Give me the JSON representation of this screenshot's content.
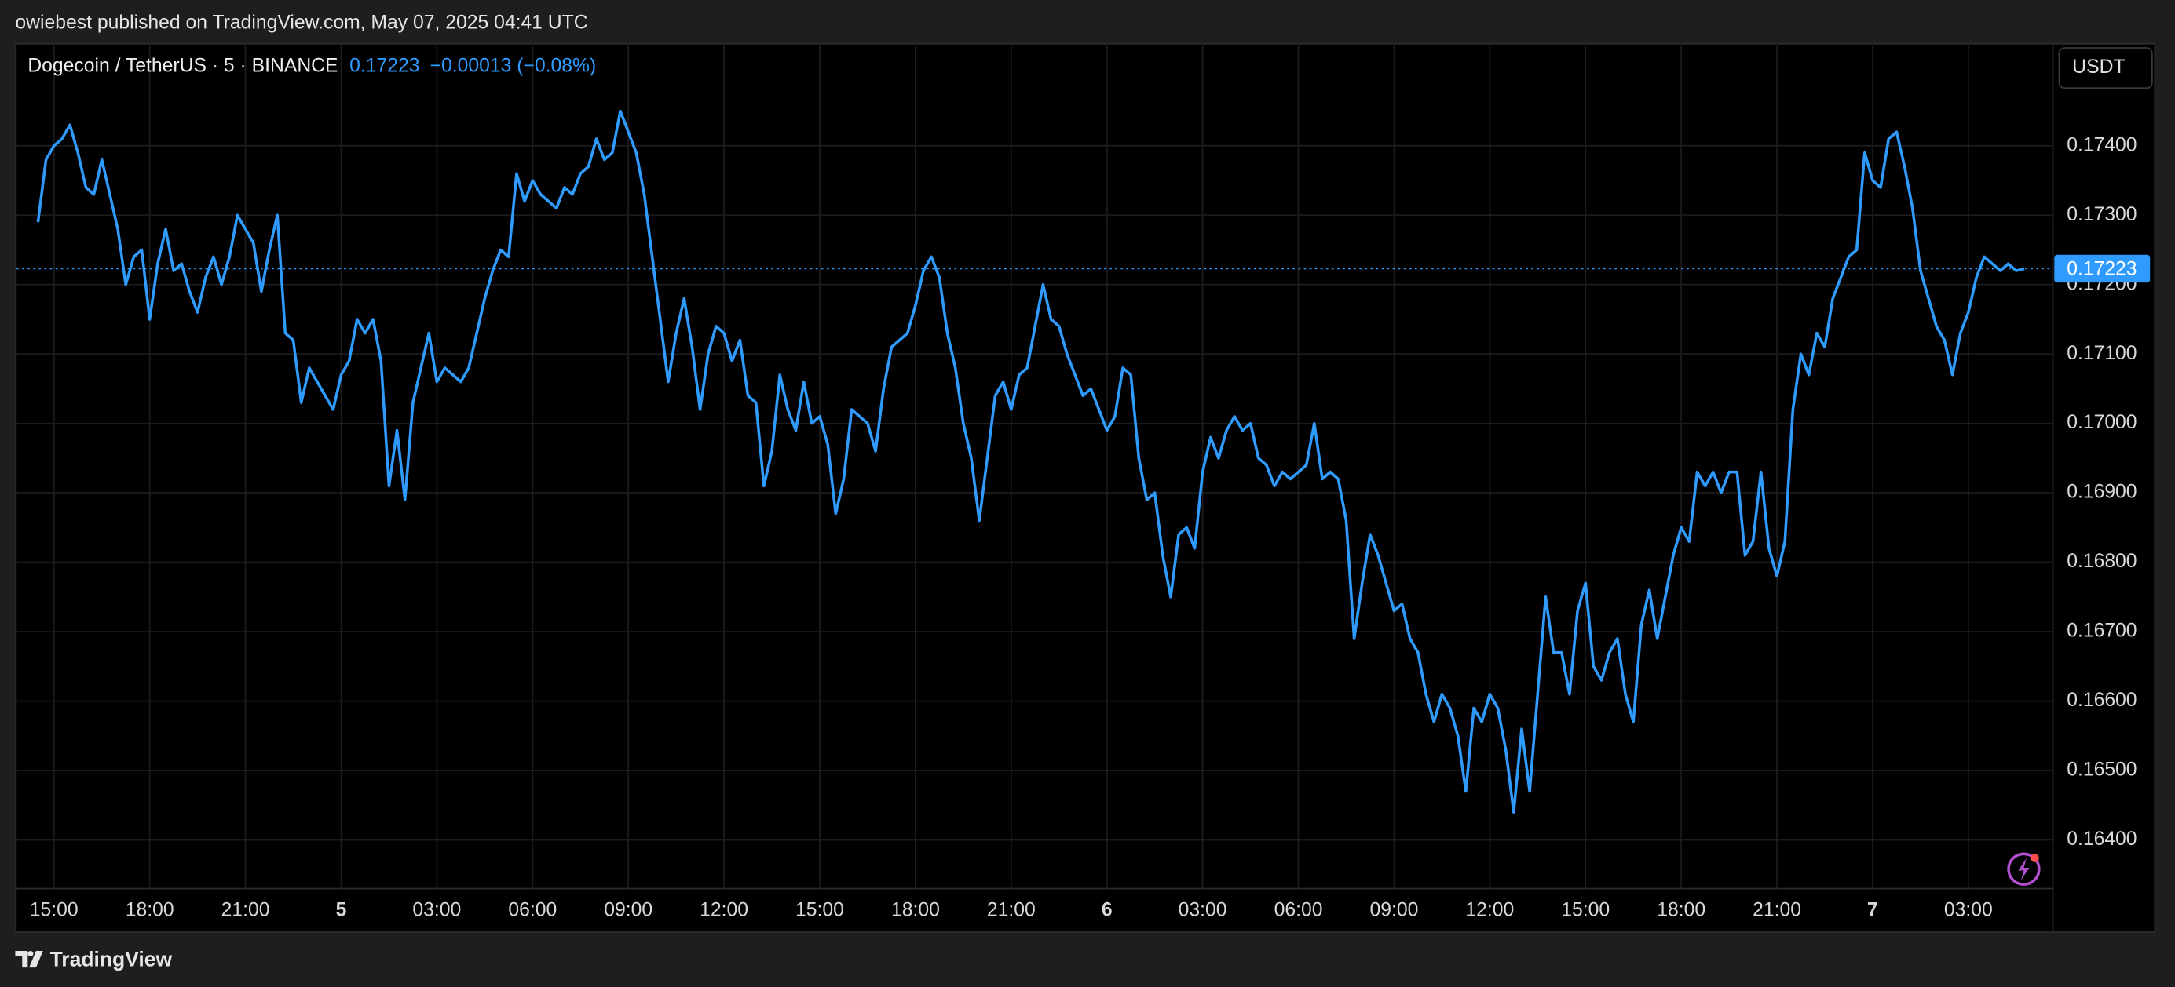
{
  "page": {
    "published": "owiebest published on TradingView.com, May 07, 2025 04:41 UTC",
    "brand": "TradingView"
  },
  "chart_data": {
    "type": "line",
    "title": "Dogecoin / TetherUS · 5 · BINANCE",
    "last_price": {
      "value": 0.17223,
      "label": "0.17223"
    },
    "change": "−0.00013 (−0.08%)",
    "y_unit": "USDT",
    "color": "#2f9bff",
    "grid": true,
    "xlim": [
      13.83,
      77.65
    ],
    "ylim": [
      0.1633,
      0.17548
    ],
    "xticks": [
      {
        "value": 15,
        "label": "15:00"
      },
      {
        "value": 18,
        "label": "18:00"
      },
      {
        "value": 21,
        "label": "21:00"
      },
      {
        "value": 24,
        "label": "5"
      },
      {
        "value": 27,
        "label": "03:00"
      },
      {
        "value": 30,
        "label": "06:00"
      },
      {
        "value": 33,
        "label": "09:00"
      },
      {
        "value": 36,
        "label": "12:00"
      },
      {
        "value": 39,
        "label": "15:00"
      },
      {
        "value": 42,
        "label": "18:00"
      },
      {
        "value": 45,
        "label": "21:00"
      },
      {
        "value": 48,
        "label": "6"
      },
      {
        "value": 51,
        "label": "03:00"
      },
      {
        "value": 54,
        "label": "06:00"
      },
      {
        "value": 57,
        "label": "09:00"
      },
      {
        "value": 60,
        "label": "12:00"
      },
      {
        "value": 63,
        "label": "15:00"
      },
      {
        "value": 66,
        "label": "18:00"
      },
      {
        "value": 69,
        "label": "21:00"
      },
      {
        "value": 72,
        "label": "7"
      },
      {
        "value": 75,
        "label": "03:00"
      }
    ],
    "yticks": [
      {
        "value": 0.164,
        "label": "0.16400"
      },
      {
        "value": 0.165,
        "label": "0.16500"
      },
      {
        "value": 0.166,
        "label": "0.16600"
      },
      {
        "value": 0.167,
        "label": "0.16700"
      },
      {
        "value": 0.168,
        "label": "0.16800"
      },
      {
        "value": 0.169,
        "label": "0.16900"
      },
      {
        "value": 0.17,
        "label": "0.17000"
      },
      {
        "value": 0.171,
        "label": "0.17100"
      },
      {
        "value": 0.172,
        "label": "0.17200"
      },
      {
        "value": 0.173,
        "label": "0.17300"
      },
      {
        "value": 0.174,
        "label": "0.17400"
      }
    ],
    "x": [
      14.5,
      14.75,
      15,
      15.25,
      15.5,
      15.75,
      16,
      16.25,
      16.5,
      16.75,
      17,
      17.25,
      17.5,
      17.75,
      18,
      18.25,
      18.5,
      18.75,
      19,
      19.25,
      19.5,
      19.75,
      20,
      20.25,
      20.5,
      20.75,
      21,
      21.25,
      21.5,
      21.75,
      22,
      22.25,
      22.5,
      22.75,
      23,
      23.25,
      23.5,
      23.75,
      24,
      24.25,
      24.5,
      24.75,
      25,
      25.25,
      25.5,
      25.75,
      26,
      26.25,
      26.5,
      26.75,
      27,
      27.25,
      27.5,
      27.75,
      28,
      28.25,
      28.5,
      28.75,
      29,
      29.25,
      29.5,
      29.75,
      30,
      30.25,
      30.5,
      30.75,
      31,
      31.25,
      31.5,
      31.75,
      32,
      32.25,
      32.5,
      32.75,
      33,
      33.25,
      33.5,
      33.75,
      34,
      34.25,
      34.5,
      34.75,
      35,
      35.25,
      35.5,
      35.75,
      36,
      36.25,
      36.5,
      36.75,
      37,
      37.25,
      37.5,
      37.75,
      38,
      38.25,
      38.5,
      38.75,
      39,
      39.25,
      39.5,
      39.75,
      40,
      40.25,
      40.5,
      40.75,
      41,
      41.25,
      41.5,
      41.75,
      42,
      42.25,
      42.5,
      42.75,
      43,
      43.25,
      43.5,
      43.75,
      44,
      44.25,
      44.5,
      44.75,
      45,
      45.25,
      45.5,
      45.75,
      46,
      46.25,
      46.5,
      46.75,
      47,
      47.25,
      47.5,
      47.75,
      48,
      48.25,
      48.5,
      48.75,
      49,
      49.25,
      49.5,
      49.75,
      50,
      50.25,
      50.5,
      50.75,
      51,
      51.25,
      51.5,
      51.75,
      52,
      52.25,
      52.5,
      52.75,
      53,
      53.25,
      53.5,
      53.75,
      54,
      54.25,
      54.5,
      54.75,
      55,
      55.25,
      55.5,
      55.75,
      56,
      56.25,
      56.5,
      56.75,
      57,
      57.25,
      57.5,
      57.75,
      58,
      58.25,
      58.5,
      58.75,
      59,
      59.25,
      59.5,
      59.75,
      60,
      60.25,
      60.5,
      60.75,
      61,
      61.25,
      61.5,
      61.75,
      62,
      62.25,
      62.5,
      62.75,
      63,
      63.25,
      63.5,
      63.75,
      64,
      64.25,
      64.5,
      64.75,
      65,
      65.25,
      65.5,
      65.75,
      66,
      66.25,
      66.5,
      66.75,
      67,
      67.25,
      67.5,
      67.75,
      68,
      68.25,
      68.5,
      68.75,
      69,
      69.25,
      69.5,
      69.75,
      70,
      70.25,
      70.5,
      70.75,
      71,
      71.25,
      71.5,
      71.75,
      72,
      72.25,
      72.5,
      72.75,
      73,
      73.25,
      73.5,
      73.75,
      74,
      74.25,
      74.5,
      74.75,
      75,
      75.25,
      75.5,
      75.75,
      76,
      76.25,
      76.5,
      76.75
    ],
    "values": [
      0.1729,
      0.1738,
      0.174,
      0.1741,
      0.1743,
      0.1739,
      0.1734,
      0.1733,
      0.1738,
      0.1733,
      0.1728,
      0.172,
      0.1724,
      0.1725,
      0.1715,
      0.1723,
      0.1728,
      0.1722,
      0.1723,
      0.1719,
      0.1716,
      0.1721,
      0.1724,
      0.172,
      0.1724,
      0.173,
      0.1728,
      0.1726,
      0.1719,
      0.1725,
      0.173,
      0.1713,
      0.1712,
      0.1703,
      0.1708,
      0.1706,
      0.1704,
      0.1702,
      0.1707,
      0.1709,
      0.1715,
      0.1713,
      0.1715,
      0.1709,
      0.1691,
      0.1699,
      0.1689,
      0.1703,
      0.1708,
      0.1713,
      0.1706,
      0.1708,
      0.1707,
      0.1706,
      0.1708,
      0.1713,
      0.1718,
      0.1722,
      0.1725,
      0.1724,
      0.1736,
      0.1732,
      0.1735,
      0.1733,
      0.1732,
      0.1731,
      0.1734,
      0.1733,
      0.1736,
      0.1737,
      0.1741,
      0.1738,
      0.1739,
      0.1745,
      0.1742,
      0.1739,
      0.1733,
      0.1724,
      0.1715,
      0.1706,
      0.1713,
      0.1718,
      0.1711,
      0.1702,
      0.171,
      0.1714,
      0.1713,
      0.1709,
      0.1712,
      0.1704,
      0.1703,
      0.1691,
      0.1696,
      0.1707,
      0.1702,
      0.1699,
      0.1706,
      0.17,
      0.1701,
      0.1697,
      0.1687,
      0.1692,
      0.1702,
      0.1701,
      0.17,
      0.1696,
      0.1705,
      0.1711,
      0.1712,
      0.1713,
      0.1717,
      0.1722,
      0.1724,
      0.1721,
      0.1713,
      0.1708,
      0.17,
      0.1695,
      0.1686,
      0.1695,
      0.1704,
      0.1706,
      0.1702,
      0.1707,
      0.1708,
      0.1714,
      0.172,
      0.1715,
      0.1714,
      0.171,
      0.1707,
      0.1704,
      0.1705,
      0.1702,
      0.1699,
      0.1701,
      0.1708,
      0.1707,
      0.1695,
      0.1689,
      0.169,
      0.1681,
      0.1675,
      0.1684,
      0.1685,
      0.1682,
      0.1693,
      0.1698,
      0.1695,
      0.1699,
      0.1701,
      0.1699,
      0.17,
      0.1695,
      0.1694,
      0.1691,
      0.1693,
      0.1692,
      0.1693,
      0.1694,
      0.17,
      0.1692,
      0.1693,
      0.1692,
      0.1686,
      0.1669,
      0.1677,
      0.1684,
      0.1681,
      0.1677,
      0.1673,
      0.1674,
      0.1669,
      0.1667,
      0.1661,
      0.1657,
      0.1661,
      0.1659,
      0.1655,
      0.1647,
      0.1659,
      0.1657,
      0.1661,
      0.1659,
      0.1653,
      0.1644,
      0.1656,
      0.1647,
      0.1661,
      0.1675,
      0.1667,
      0.1667,
      0.1661,
      0.1673,
      0.1677,
      0.1665,
      0.1663,
      0.1667,
      0.1669,
      0.1661,
      0.1657,
      0.1671,
      0.1676,
      0.1669,
      0.1675,
      0.1681,
      0.1685,
      0.1683,
      0.1693,
      0.1691,
      0.1693,
      0.169,
      0.1693,
      0.1693,
      0.1681,
      0.1683,
      0.1693,
      0.1682,
      0.1678,
      0.1683,
      0.1702,
      0.171,
      0.1707,
      0.1713,
      0.1711,
      0.1718,
      0.1721,
      0.1724,
      0.1725,
      0.1739,
      0.1735,
      0.1734,
      0.1741,
      0.1742,
      0.1737,
      0.1731,
      0.1722,
      0.1718,
      0.1714,
      0.1712,
      0.1707,
      0.1713,
      0.1716,
      0.1721,
      0.1724,
      0.1723,
      0.1722,
      0.1723,
      0.1722,
      0.17223
    ]
  }
}
